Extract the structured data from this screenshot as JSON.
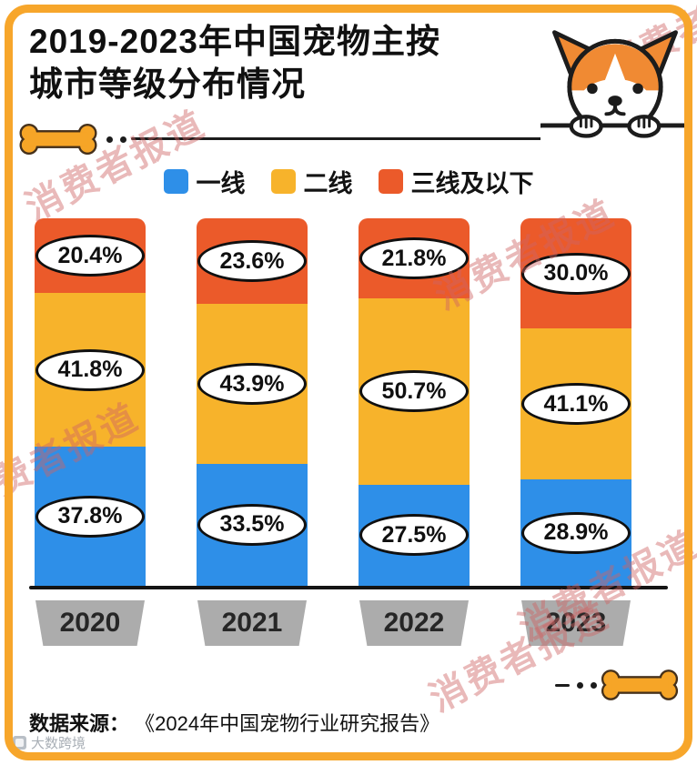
{
  "header": {
    "title_line1": "2019-2023年中国宠物主按",
    "title_line2": "城市等级分布情况"
  },
  "legend": {
    "items": [
      {
        "label": "一线",
        "color": "#2E8FE8"
      },
      {
        "label": "二线",
        "color": "#F7B32B"
      },
      {
        "label": "三线及以下",
        "color": "#EB5A2A"
      }
    ]
  },
  "chart_data": {
    "type": "bar",
    "stacked": true,
    "title": "2019-2023年中国宠物主按城市等级分布情况",
    "categories": [
      "2020",
      "2021",
      "2022",
      "2023"
    ],
    "series": [
      {
        "name": "一线",
        "color": "#2E8FE8",
        "values": [
          37.8,
          33.5,
          27.5,
          28.9
        ]
      },
      {
        "name": "二线",
        "color": "#F7B32B",
        "values": [
          41.8,
          43.9,
          50.7,
          41.1
        ]
      },
      {
        "name": "三线及以下",
        "color": "#EB5A2A",
        "values": [
          20.4,
          23.6,
          21.8,
          30.0
        ]
      }
    ],
    "value_unit": "%",
    "ylim": [
      0,
      100
    ],
    "legend_position": "top",
    "grid": false
  },
  "footer": {
    "source_label": "数据来源：",
    "source_text": "《2024年中国宠物行业研究报告》"
  },
  "watermark": {
    "text": "消费者报道",
    "corner_text": "大数跨境"
  },
  "colors": {
    "frame": "#F7A62B",
    "axis": "#141414",
    "year_tag_bg": "#ACACAC",
    "bone": "#F6A527",
    "bone_outline": "#45301a"
  }
}
